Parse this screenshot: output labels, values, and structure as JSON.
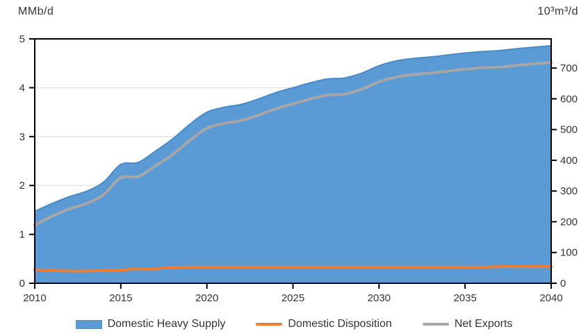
{
  "figure": {
    "left_unit_label": "MMb/d",
    "right_unit_label": "10³m³/d"
  },
  "chart_data": {
    "type": "area",
    "x": [
      2010,
      2011,
      2012,
      2013,
      2014,
      2015,
      2016,
      2017,
      2018,
      2019,
      2020,
      2021,
      2022,
      2023,
      2024,
      2025,
      2026,
      2027,
      2028,
      2029,
      2030,
      2031,
      2032,
      2033,
      2034,
      2035,
      2036,
      2037,
      2038,
      2039,
      2040
    ],
    "series": [
      {
        "name": "Domestic Heavy Supply",
        "type": "area",
        "color": "#5b9bd5",
        "edge_color": "#4a89c4",
        "values": [
          1.47,
          1.63,
          1.77,
          1.88,
          2.07,
          2.43,
          2.47,
          2.7,
          2.95,
          3.25,
          3.5,
          3.6,
          3.66,
          3.77,
          3.9,
          4.0,
          4.1,
          4.18,
          4.2,
          4.3,
          4.45,
          4.55,
          4.6,
          4.63,
          4.67,
          4.71,
          4.74,
          4.76,
          4.8,
          4.83,
          4.86
        ]
      },
      {
        "name": "Domestic Disposition",
        "type": "line",
        "color": "#ed7d31",
        "values": [
          0.28,
          0.26,
          0.25,
          0.25,
          0.26,
          0.27,
          0.29,
          0.3,
          0.32,
          0.33,
          0.33,
          0.33,
          0.33,
          0.33,
          0.33,
          0.33,
          0.33,
          0.33,
          0.33,
          0.33,
          0.33,
          0.33,
          0.33,
          0.33,
          0.33,
          0.33,
          0.33,
          0.34,
          0.34,
          0.34,
          0.34
        ]
      },
      {
        "name": "Net Exports",
        "type": "line",
        "color": "#a6a6a6",
        "values": [
          1.19,
          1.37,
          1.52,
          1.63,
          1.81,
          2.16,
          2.18,
          2.4,
          2.63,
          2.92,
          3.17,
          3.27,
          3.33,
          3.44,
          3.57,
          3.67,
          3.77,
          3.85,
          3.87,
          3.97,
          4.12,
          4.22,
          4.27,
          4.3,
          4.34,
          4.38,
          4.41,
          4.42,
          4.46,
          4.49,
          4.52
        ]
      }
    ],
    "left_axis": {
      "label": "MMb/d",
      "min": 0,
      "max": 5,
      "ticks": [
        0,
        1,
        2,
        3,
        4,
        5
      ]
    },
    "right_axis": {
      "label": "10³m³/d",
      "min": 0,
      "max": 795,
      "ticks": [
        0,
        100,
        200,
        300,
        400,
        500,
        600,
        700
      ]
    },
    "x_ticks": [
      2010,
      2015,
      2020,
      2025,
      2030,
      2035,
      2040
    ],
    "x_range": [
      2010,
      2040
    ],
    "grid": "horizontal",
    "grid_color": "#d9d9d9",
    "axis_color": "#000000",
    "text_color": "#333333",
    "background": "#ffffff",
    "legend_position": "bottom"
  }
}
